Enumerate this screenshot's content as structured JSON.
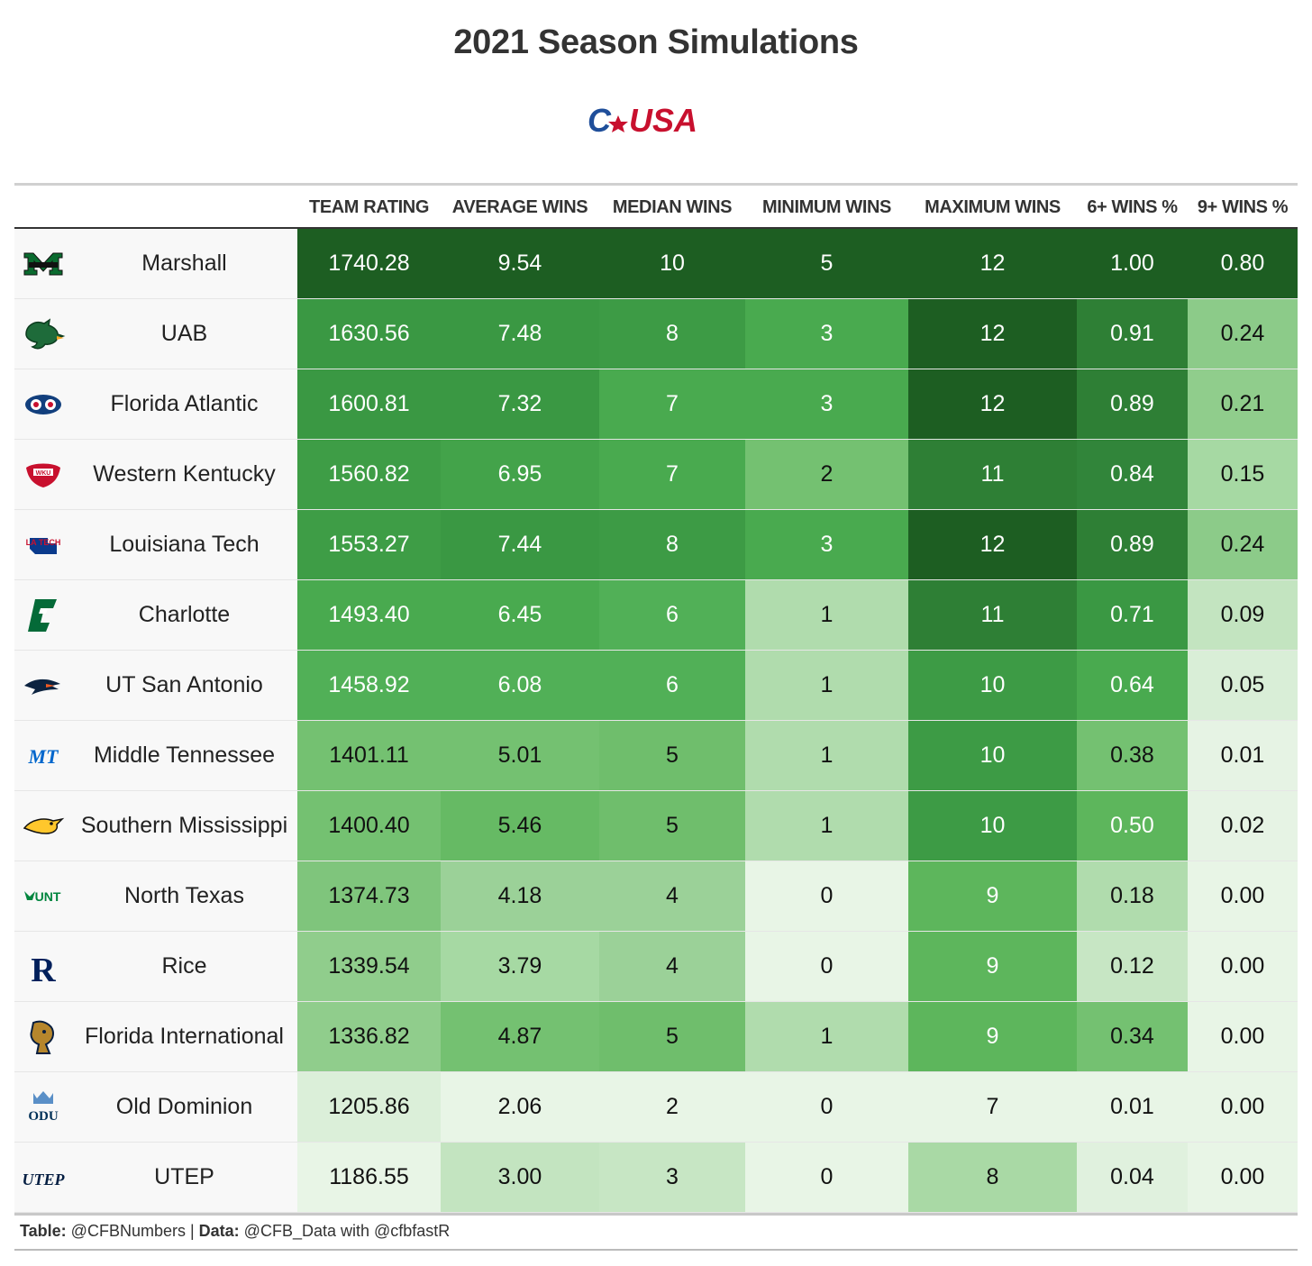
{
  "title": "2021 Season Simulations",
  "conference_logo_text": "C-USA",
  "headers": [
    "TEAM RATING",
    "AVERAGE WINS",
    "MEDIAN WINS",
    "MINIMUM WINS",
    "MAXIMUM WINS",
    "6+ WINS %",
    "9+ WINS %"
  ],
  "rows": [
    {
      "team": "Marshall",
      "logo": "marshall-logo",
      "values": [
        "1740.28",
        "9.54",
        "10",
        "5",
        "12",
        "1.00",
        "0.80"
      ],
      "colors": [
        "#1d5e22",
        "#1d5e22",
        "#1d5e22",
        "#1d5e22",
        "#1d5e22",
        "#1d5e22",
        "#1d5e22"
      ]
    },
    {
      "team": "UAB",
      "logo": "uab-logo",
      "values": [
        "1630.56",
        "7.48",
        "8",
        "3",
        "12",
        "0.91",
        "0.24"
      ],
      "colors": [
        "#3a9843",
        "#3a9843",
        "#3d9b45",
        "#49aa4f",
        "#1d5e22",
        "#2e7f35",
        "#8ccb89"
      ]
    },
    {
      "team": "Florida Atlantic",
      "logo": "fau-logo",
      "values": [
        "1600.81",
        "7.32",
        "7",
        "3",
        "12",
        "0.89",
        "0.21"
      ],
      "colors": [
        "#3a9843",
        "#3a9843",
        "#49aa4f",
        "#49aa4f",
        "#1d5e22",
        "#2e7f35",
        "#90cd8c"
      ]
    },
    {
      "team": "Western Kentucky",
      "logo": "wku-logo",
      "values": [
        "1560.82",
        "6.95",
        "7",
        "2",
        "11",
        "0.84",
        "0.15"
      ],
      "colors": [
        "#3e9d46",
        "#43a34a",
        "#49aa4f",
        "#74c171",
        "#2e7f35",
        "#31853a",
        "#a6d9a3"
      ]
    },
    {
      "team": "Louisiana Tech",
      "logo": "latech-logo",
      "values": [
        "1553.27",
        "7.44",
        "8",
        "3",
        "12",
        "0.89",
        "0.24"
      ],
      "colors": [
        "#3e9d46",
        "#3a9843",
        "#3d9b45",
        "#49aa4f",
        "#1d5e22",
        "#2e7f35",
        "#8ccb89"
      ]
    },
    {
      "team": "Charlotte",
      "logo": "charlotte-logo",
      "values": [
        "1493.40",
        "6.45",
        "6",
        "1",
        "11",
        "0.71",
        "0.09"
      ],
      "colors": [
        "#49aa4f",
        "#49aa4f",
        "#51b057",
        "#b0dcad",
        "#2e7f35",
        "#3a9843",
        "#c3e4c0"
      ]
    },
    {
      "team": "UT San Antonio",
      "logo": "utsa-logo",
      "values": [
        "1458.92",
        "6.08",
        "6",
        "1",
        "10",
        "0.64",
        "0.05"
      ],
      "colors": [
        "#51b057",
        "#51b057",
        "#51b057",
        "#b0dcad",
        "#3d9b45",
        "#49aa4f",
        "#d9eed7"
      ]
    },
    {
      "team": "Middle Tennessee",
      "logo": "mtsu-logo",
      "values": [
        "1401.11",
        "5.01",
        "5",
        "1",
        "10",
        "0.38",
        "0.01"
      ],
      "colors": [
        "#74c171",
        "#74c171",
        "#6fbe6c",
        "#b0dcad",
        "#3d9b45",
        "#74c171",
        "#e6f3e4"
      ]
    },
    {
      "team": "Southern Mississippi",
      "logo": "usm-logo",
      "values": [
        "1400.40",
        "5.46",
        "5",
        "1",
        "10",
        "0.50",
        "0.02"
      ],
      "colors": [
        "#74c171",
        "#66ba64",
        "#6fbe6c",
        "#b0dcad",
        "#3d9b45",
        "#5db65c",
        "#e6f3e4"
      ]
    },
    {
      "team": "North Texas",
      "logo": "unt-logo",
      "values": [
        "1374.73",
        "4.18",
        "4",
        "0",
        "9",
        "0.18",
        "0.00"
      ],
      "colors": [
        "#7fc57c",
        "#9bd198",
        "#9bd198",
        "#e8f5e6",
        "#5db65c",
        "#b0dcad",
        "#e8f5e6"
      ]
    },
    {
      "team": "Rice",
      "logo": "rice-logo",
      "values": [
        "1339.54",
        "3.79",
        "4",
        "0",
        "9",
        "0.12",
        "0.00"
      ],
      "colors": [
        "#90cd8c",
        "#a6d9a3",
        "#9bd198",
        "#e8f5e6",
        "#5db65c",
        "#c7e6c4",
        "#e8f5e6"
      ]
    },
    {
      "team": "Florida International",
      "logo": "fiu-logo",
      "values": [
        "1336.82",
        "4.87",
        "5",
        "1",
        "9",
        "0.34",
        "0.00"
      ],
      "colors": [
        "#90cd8c",
        "#74c171",
        "#6fbe6c",
        "#b0dcad",
        "#5db65c",
        "#74c171",
        "#e8f5e6"
      ]
    },
    {
      "team": "Old Dominion",
      "logo": "odu-logo",
      "values": [
        "1205.86",
        "2.06",
        "2",
        "0",
        "7",
        "0.01",
        "0.00"
      ],
      "colors": [
        "#dbefd9",
        "#e8f5e6",
        "#e8f5e6",
        "#e8f5e6",
        "#e8f5e6",
        "#e8f5e6",
        "#e8f5e6"
      ]
    },
    {
      "team": "UTEP",
      "logo": "utep-logo",
      "values": [
        "1186.55",
        "3.00",
        "3",
        "0",
        "8",
        "0.04",
        "0.00"
      ],
      "colors": [
        "#e8f5e6",
        "#c3e4c0",
        "#c7e6c4",
        "#e8f5e6",
        "#a9d9a5",
        "#e0f1de",
        "#e8f5e6"
      ]
    }
  ],
  "footer": {
    "table_label": "Table:",
    "table_value": " @CFBNumbers | ",
    "data_label": "Data:",
    "data_value": " @CFB_Data with @cfbfastR"
  }
}
